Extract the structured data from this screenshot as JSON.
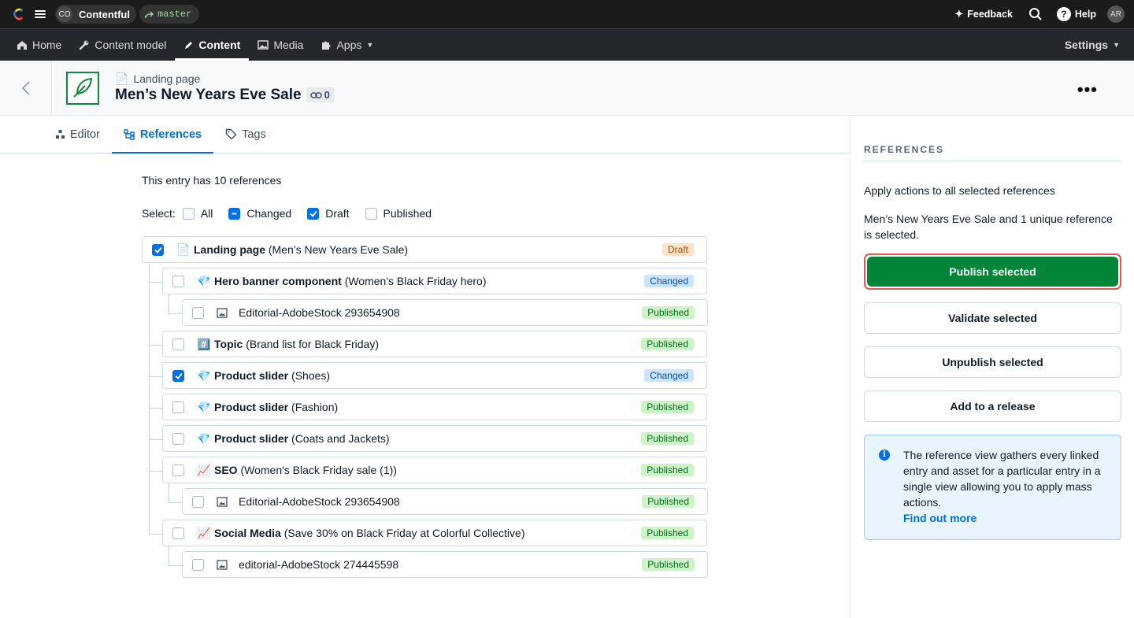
{
  "topbar": {
    "space_initials": "CO",
    "space_name": "Contentful",
    "environment": "master",
    "feedback": "Feedback",
    "help": "Help",
    "user_initials": "AR"
  },
  "nav": {
    "home": "Home",
    "content_model": "Content model",
    "content": "Content",
    "media": "Media",
    "apps": "Apps",
    "settings": "Settings"
  },
  "entry": {
    "content_type": "Landing page",
    "title": "Men’s New Years Eve Sale",
    "link_count": "0"
  },
  "tabs": {
    "editor": "Editor",
    "references": "References",
    "tags": "Tags"
  },
  "references": {
    "count_text": "This entry has 10 references",
    "select_label": "Select:",
    "filters": [
      "All",
      "Changed",
      "Draft",
      "Published"
    ],
    "rows": [
      {
        "icon": "📄",
        "type": "Landing page",
        "name": "(Men’s New Years Eve Sale)",
        "status": "Draft",
        "checked": true
      },
      {
        "icon": "💎",
        "type": "Hero banner component",
        "name": "(Women's Black Friday hero)",
        "status": "Changed",
        "checked": false
      },
      {
        "icon": "🖼",
        "type": "",
        "name": "Editorial-AdobeStock 293654908",
        "status": "Published",
        "checked": false
      },
      {
        "icon": "#️⃣",
        "type": "Topic",
        "name": "(Brand list for Black Friday)",
        "status": "Published",
        "checked": false
      },
      {
        "icon": "💎",
        "type": "Product slider",
        "name": "(Shoes)",
        "status": "Changed",
        "checked": true
      },
      {
        "icon": "💎",
        "type": "Product slider",
        "name": "(Fashion)",
        "status": "Published",
        "checked": false
      },
      {
        "icon": "💎",
        "type": "Product slider",
        "name": "(Coats and Jackets)",
        "status": "Published",
        "checked": false
      },
      {
        "icon": "📈",
        "type": "SEO",
        "name": "(Women's Black Friday sale (1))",
        "status": "Published",
        "checked": false
      },
      {
        "icon": "🖼",
        "type": "",
        "name": "Editorial-AdobeStock 293654908",
        "status": "Published",
        "checked": false
      },
      {
        "icon": "📈",
        "type": "Social Media",
        "name": "(Save 30% on Black Friday at Colorful Collective)",
        "status": "Published",
        "checked": false
      },
      {
        "icon": "🖼",
        "type": "",
        "name": "editorial-AdobeStock 274445598",
        "status": "Published",
        "checked": false
      }
    ]
  },
  "sidebar": {
    "heading": "REFERENCES",
    "apply_text": "Apply actions to all selected references",
    "selected_text": "Men’s New Years Eve Sale and 1 unique reference is selected.",
    "publish": "Publish selected",
    "validate": "Validate selected",
    "unpublish": "Unpublish selected",
    "add_release": "Add to a release",
    "note": "The reference view gathers every linked entry and asset for a particular entry in a single view allowing you to apply mass actions.",
    "note_link": "Find out more"
  }
}
